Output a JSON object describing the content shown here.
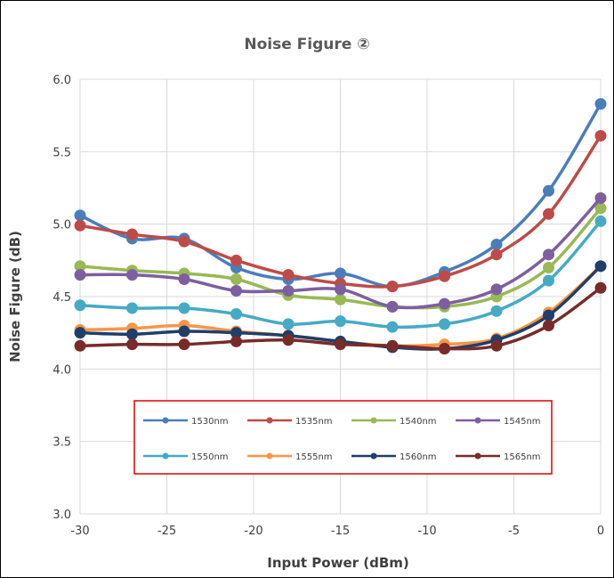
{
  "chart_data": {
    "type": "line",
    "title": "Noise Figure ②",
    "xlabel": "Input Power (dBm)",
    "ylabel": "Noise Figure (dB)",
    "xlim": [
      -30,
      0
    ],
    "ylim": [
      3.0,
      6.0
    ],
    "x_ticks": [
      "-30",
      "-25",
      "-20",
      "-15",
      "-10",
      "-5",
      "0"
    ],
    "y_ticks": [
      "3.0",
      "3.5",
      "4.0",
      "4.5",
      "5.0",
      "5.5",
      "6.0"
    ],
    "grid": true,
    "legend_position": "lower-center",
    "x": [
      -30,
      -27,
      -24,
      -21,
      -18,
      -15,
      -12,
      -9,
      -6,
      -3,
      0
    ],
    "series": [
      {
        "name": "1530nm",
        "color": "#4a7ebb",
        "values": [
          5.06,
          4.9,
          4.9,
          4.7,
          4.62,
          4.66,
          4.57,
          4.67,
          4.86,
          5.23,
          5.83
        ]
      },
      {
        "name": "1535nm",
        "color": "#be4b48",
        "values": [
          4.99,
          4.93,
          4.88,
          4.75,
          4.65,
          4.59,
          4.57,
          4.64,
          4.79,
          5.07,
          5.61
        ]
      },
      {
        "name": "1540nm",
        "color": "#98b954",
        "values": [
          4.71,
          4.68,
          4.66,
          4.62,
          4.51,
          4.48,
          4.43,
          4.43,
          4.5,
          4.7,
          5.11
        ]
      },
      {
        "name": "1545nm",
        "color": "#7d5fa0",
        "values": [
          4.65,
          4.65,
          4.62,
          4.54,
          4.54,
          4.55,
          4.43,
          4.45,
          4.55,
          4.79,
          5.18
        ]
      },
      {
        "name": "1550nm",
        "color": "#46aac5",
        "values": [
          4.44,
          4.42,
          4.42,
          4.38,
          4.31,
          4.33,
          4.29,
          4.31,
          4.4,
          4.61,
          5.02
        ]
      },
      {
        "name": "1555nm",
        "color": "#f79646",
        "values": [
          4.27,
          4.28,
          4.3,
          4.26,
          4.23,
          4.19,
          4.16,
          4.17,
          4.21,
          4.39,
          4.71
        ]
      },
      {
        "name": "1560nm",
        "color": "#1f3f6a",
        "values": [
          4.25,
          4.24,
          4.26,
          4.25,
          4.23,
          4.19,
          4.15,
          4.14,
          4.2,
          4.37,
          4.71
        ]
      },
      {
        "name": "1565nm",
        "color": "#772c2a",
        "values": [
          4.16,
          4.17,
          4.17,
          4.19,
          4.2,
          4.17,
          4.16,
          4.14,
          4.16,
          4.3,
          4.56
        ]
      }
    ]
  }
}
